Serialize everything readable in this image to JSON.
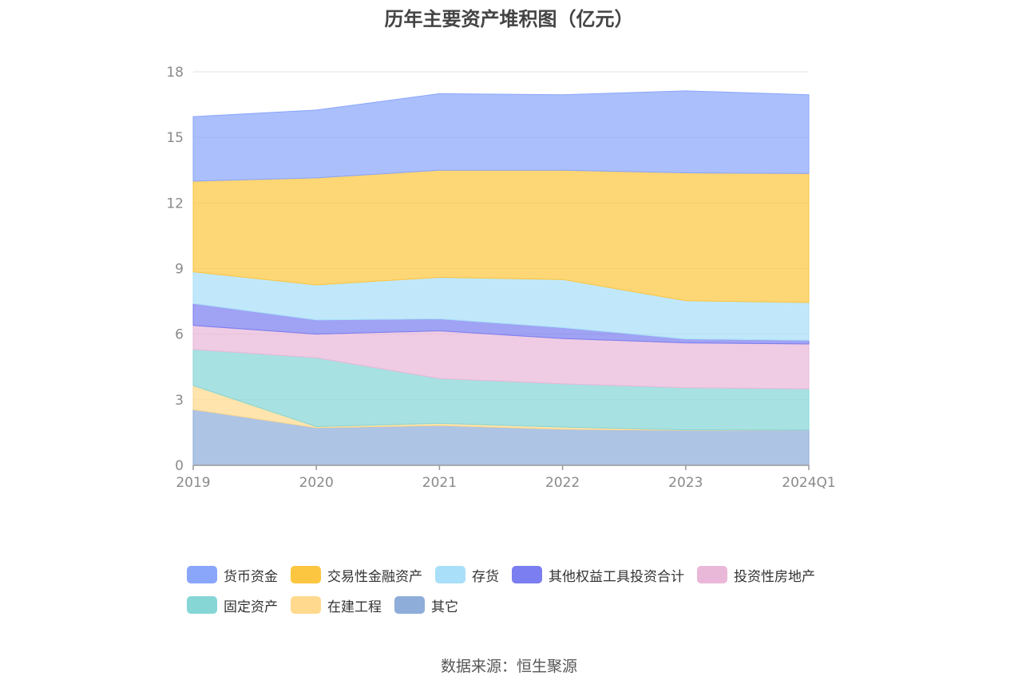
{
  "chart_data": {
    "type": "area",
    "stacked": true,
    "title": "历年主要资产堆积图（亿元）",
    "categories": [
      "2019",
      "2020",
      "2021",
      "2022",
      "2023",
      "2024Q1"
    ],
    "y_ticks": [
      "0",
      "3",
      "6",
      "9",
      "12",
      "15",
      "18"
    ],
    "ylim": [
      0,
      18
    ],
    "grid": true,
    "legend_position": "bottom",
    "series": [
      {
        "name": "其它",
        "color": "#8eadd9",
        "values": [
          2.55,
          1.72,
          1.82,
          1.65,
          1.6,
          1.62
        ]
      },
      {
        "name": "在建工程",
        "color": "#ffd98e",
        "values": [
          1.1,
          0.05,
          0.1,
          0.1,
          0.02,
          0.0
        ]
      },
      {
        "name": "固定资产",
        "color": "#86d6d6",
        "values": [
          1.65,
          3.15,
          2.05,
          1.98,
          1.93,
          1.88
        ]
      },
      {
        "name": "投资性房地产",
        "color": "#e9b8d9",
        "values": [
          1.1,
          1.08,
          2.18,
          2.07,
          2.05,
          2.05
        ]
      },
      {
        "name": "其他权益工具投资合计",
        "color": "#7b7ef0",
        "values": [
          1.0,
          0.65,
          0.55,
          0.5,
          0.18,
          0.17
        ]
      },
      {
        "name": "存货",
        "color": "#a9dff8",
        "values": [
          1.45,
          1.6,
          1.9,
          2.2,
          1.75,
          1.73
        ]
      },
      {
        "name": "交易性金融资产",
        "color": "#fcc640",
        "values": [
          4.15,
          4.9,
          4.9,
          5.0,
          5.85,
          5.9
        ]
      },
      {
        "name": "货币资金",
        "color": "#8aa6fb",
        "values": [
          2.95,
          3.1,
          3.5,
          3.45,
          3.75,
          3.6
        ]
      }
    ]
  },
  "legend_order": [
    7,
    6,
    5,
    4,
    3,
    2,
    1,
    0
  ],
  "source_text": "数据来源：恒生聚源"
}
